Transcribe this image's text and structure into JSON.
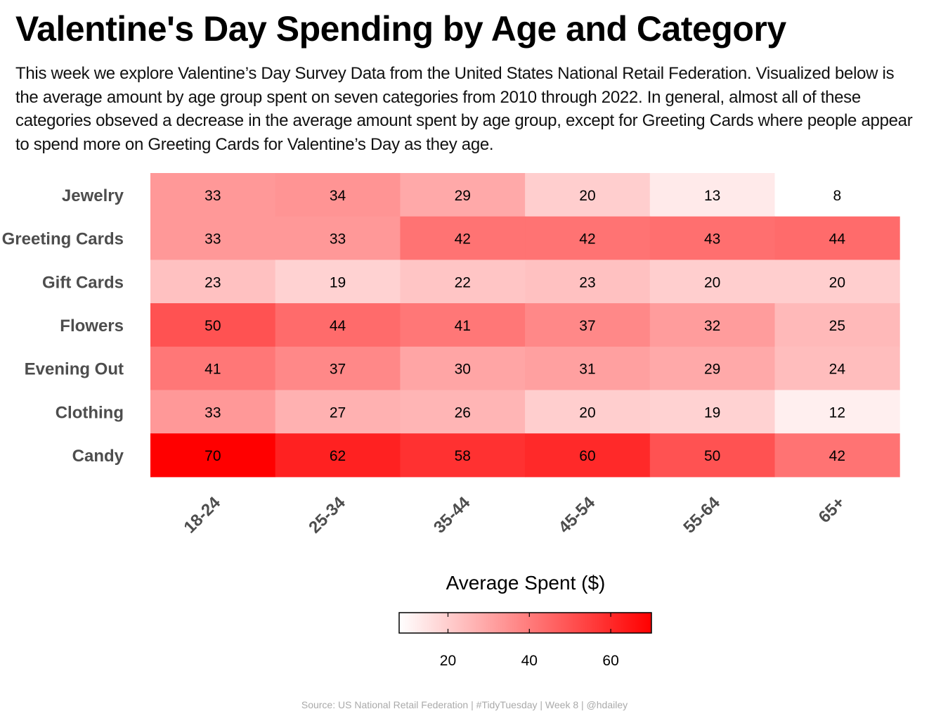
{
  "title": "Valentine's Day Spending by Age and Category",
  "subtitle": "This week we explore Valentine’s Day Survey Data from the United States National Retail Federation. Visualized below is the average amount by age group spent on seven categories from 2010 through 2022. In general, almost all of these categories obseved a decrease in the average amount spent by age group, except for Greeting Cards where people appear to spend more on Greeting Cards for Valentine’s Day as they age.",
  "caption": "Source: US National Retail Federation | #TidyTuesday | Week 8 | @hdailey",
  "chart_data": {
    "type": "heatmap",
    "x": [
      "18-24",
      "25-34",
      "35-44",
      "45-54",
      "55-64",
      "65+"
    ],
    "y": [
      "Jewelry",
      "Greeting Cards",
      "Gift Cards",
      "Flowers",
      "Evening Out",
      "Clothing",
      "Candy"
    ],
    "values": [
      [
        33,
        34,
        29,
        20,
        13,
        8
      ],
      [
        33,
        33,
        42,
        42,
        43,
        44
      ],
      [
        23,
        19,
        22,
        23,
        20,
        20
      ],
      [
        50,
        44,
        41,
        37,
        32,
        25
      ],
      [
        41,
        37,
        30,
        31,
        29,
        24
      ],
      [
        33,
        27,
        26,
        20,
        19,
        12
      ],
      [
        70,
        62,
        58,
        60,
        50,
        42
      ]
    ],
    "legend": {
      "title": "Average Spent ($)",
      "ticks": [
        20,
        40,
        60
      ],
      "range": [
        8,
        70
      ],
      "low_color": "#ffffff",
      "high_color": "#ff0000",
      "placement": "bottom"
    }
  }
}
